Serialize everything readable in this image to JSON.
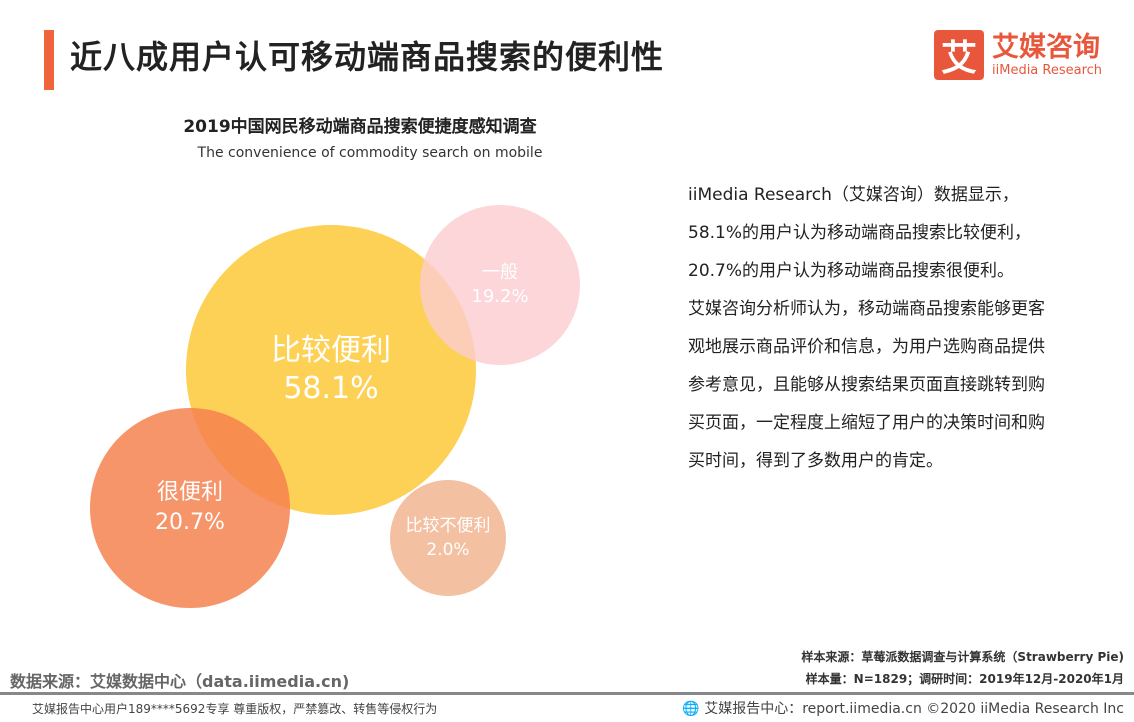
{
  "header": {
    "title": "近八成用户认可移动端商品搜索的便利性",
    "logo_mark": "艾",
    "logo_cn": "艾媒咨询",
    "logo_en": "iiMedia Research"
  },
  "chart_data": {
    "type": "bubble",
    "title": "2019中国网民移动端商品搜索便捷度感知调查",
    "subtitle": "The convenience of commodity search on mobile",
    "items": [
      {
        "label": "比较便利",
        "value": "58.1%",
        "color": "#fdcf4c"
      },
      {
        "label": "一般",
        "value": "19.2%",
        "color": "#fbd3d6"
      },
      {
        "label": "很便利",
        "value": "20.7%",
        "color": "#f78f62"
      },
      {
        "label": "比较不便利",
        "value": "2.0%",
        "color": "#f4c0a2"
      }
    ]
  },
  "text": {
    "p1": "iiMedia Research（艾媒咨询）数据显示，58.1%的用户认为移动端商品搜索比较便利，20.7%的用户认为移动端商品搜索很便利。",
    "p2": "艾媒咨询分析师认为，移动端商品搜索能够更客观地展示商品评价和信息，为用户选购商品提供参考意见，且能够从搜索结果页面直接跳转到购买页面，一定程度上缩短了用户的决策时间和购买时间，得到了多数用户的肯定。"
  },
  "footer": {
    "sample_source": "样本来源：草莓派数据调查与计算系统（Strawberry Pie)",
    "sample_size": "样本量：N=1829；调研时间：2019年12月-2020年1月",
    "data_source": "数据来源：艾媒数据中心（data.iimedia.cn)",
    "copyright_notice": "艾媒报告中心用户189****5692专享 尊重版权，严禁篡改、转售等侵权行为",
    "report": "艾媒报告中心：report.iimedia.cn  ©2020  iiMedia Research Inc"
  }
}
